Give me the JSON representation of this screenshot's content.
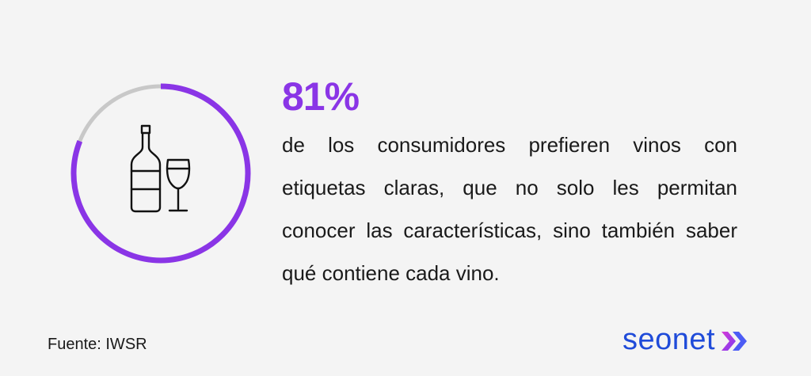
{
  "stat": {
    "value": "81%",
    "fraction": 0.81,
    "description": "de los consumidores prefieren vinos con etiquetas claras, que no solo les permitan conocer las características, sino también saber qué contiene cada vino."
  },
  "icon": "wine-bottle-and-glass-icon",
  "source": "Fuente: IWSR",
  "brand": {
    "name": "seonet",
    "mark": "double-chevron-icon"
  },
  "colors": {
    "background": "#f4f4f4",
    "accent": "#8a35e6",
    "ring_track": "#c8c8c8",
    "brand_blue": "#1f4bd9",
    "brand_pink": "#d83ad6",
    "brand_violet": "#7a3cf0"
  }
}
